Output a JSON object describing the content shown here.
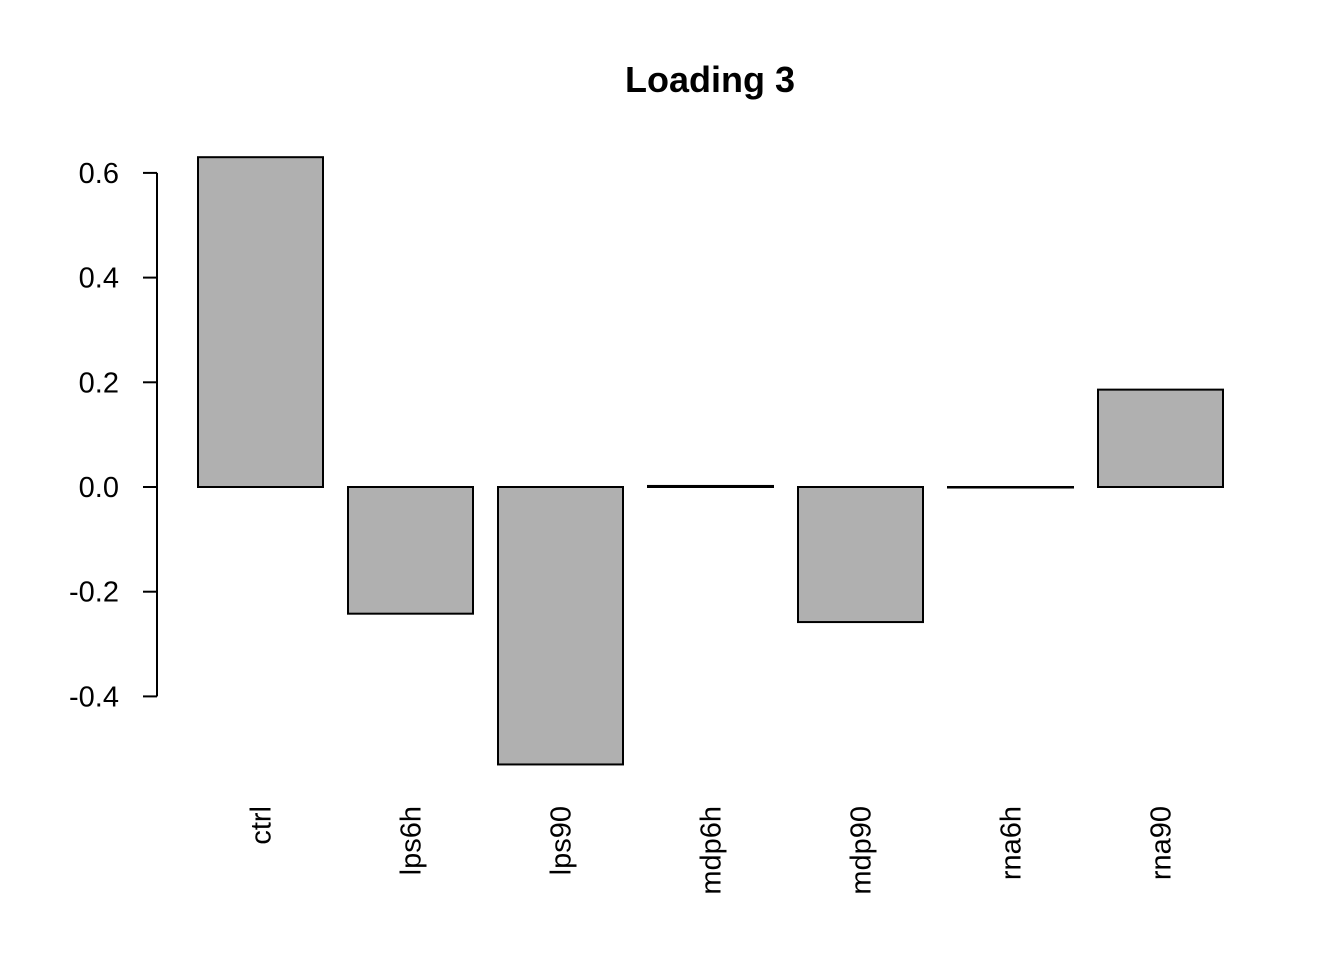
{
  "chart_data": {
    "type": "bar",
    "title": "Loading 3",
    "xlabel": "",
    "ylabel": "",
    "categories": [
      "ctrl",
      "lps6h",
      "lps90",
      "mdp6h",
      "mdp90",
      "rna6h",
      "rna90"
    ],
    "values": [
      0.63,
      -0.242,
      -0.53,
      0.002,
      -0.258,
      -0.001,
      0.186
    ],
    "y_ticks": [
      0.6,
      0.4,
      0.2,
      0.0,
      -0.2,
      -0.4
    ],
    "y_tick_labels": [
      "0.6",
      "0.4",
      "0.2",
      "0.0",
      "-0.2",
      "-0.4"
    ],
    "ylim": [
      -0.53,
      0.63
    ],
    "grid": false,
    "legend": "none",
    "bar_color": "#b0b0b0"
  }
}
